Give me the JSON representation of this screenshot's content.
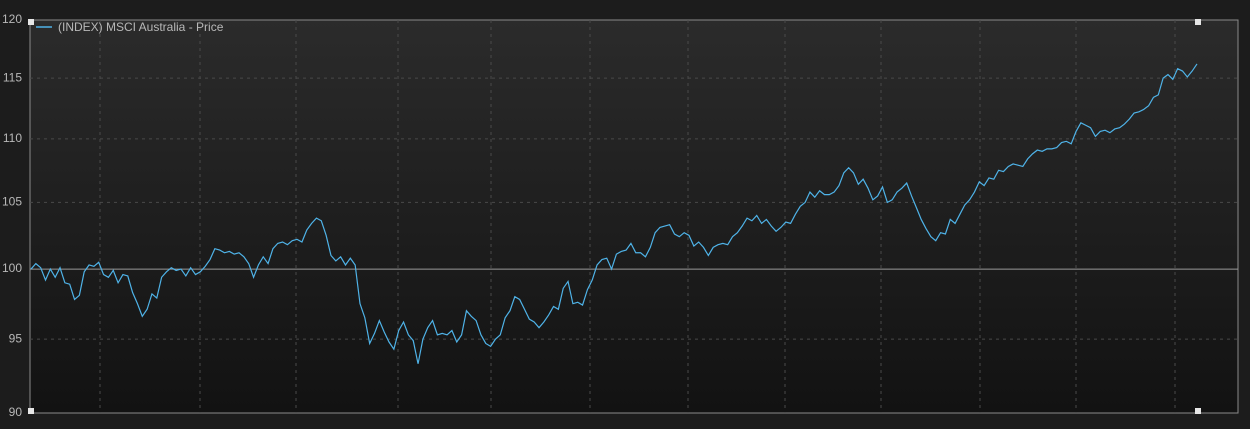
{
  "chart_data": {
    "type": "line",
    "legend_label": "(INDEX) MSCI Australia - Price",
    "series": [
      {
        "name": "(INDEX) MSCI Australia - Price",
        "color": "#4fb3e8",
        "values": [
          100,
          100.4,
          100.1,
          99.2,
          100,
          99.4,
          100.1,
          99,
          98.9,
          97.8,
          98.1,
          99.8,
          100.3,
          100.2,
          100.5,
          99.6,
          99.4,
          99.9,
          99,
          99.6,
          99.5,
          98.3,
          97.5,
          96.6,
          97.1,
          98.2,
          97.9,
          99.4,
          99.8,
          100.1,
          99.9,
          100,
          99.5,
          100.1,
          99.6,
          99.8,
          100.2,
          100.7,
          101.5,
          101.4,
          101.2,
          101.3,
          101.1,
          101.2,
          100.9,
          100.4,
          99.4,
          100.3,
          100.9,
          100.4,
          101.5,
          101.9,
          102,
          101.8,
          102.1,
          102.2,
          102,
          102.9,
          103.4,
          103.8,
          103.6,
          102.5,
          101,
          100.6,
          100.9,
          100.3,
          100.8,
          100.3,
          97.5,
          96.5,
          94.7,
          95.4,
          96.3,
          95.5,
          94.8,
          94.3,
          95.6,
          96.2,
          95.3,
          94.9,
          93.3,
          95,
          95.8,
          96.3,
          95.3,
          95.4,
          95.3,
          95.6,
          94.8,
          95.3,
          97,
          96.6,
          96.3,
          95.3,
          94.7,
          94.5,
          95,
          95.3,
          96.5,
          97,
          98,
          97.8,
          97.1,
          96.4,
          96.2,
          95.8,
          96.2,
          96.7,
          97.3,
          97.1,
          98.6,
          99.1,
          97.5,
          97.6,
          97.4,
          98.5,
          99.2,
          100.3,
          100.7,
          100.8,
          100,
          101.1,
          101.3,
          101.4,
          101.9,
          101.2,
          101.2,
          100.9,
          101.6,
          102.7,
          103.1,
          103.2,
          103.3,
          102.6,
          102.4,
          102.7,
          102.5,
          101.7,
          102,
          101.6,
          101,
          101.6,
          101.8,
          101.9,
          101.8,
          102.4,
          102.7,
          103.2,
          103.8,
          103.6,
          104,
          103.4,
          103.7,
          103.2,
          102.8,
          103.1,
          103.5,
          103.4,
          104.1,
          104.7,
          105,
          105.8,
          105.4,
          105.9,
          105.6,
          105.6,
          105.8,
          106.3,
          107.3,
          107.7,
          107.3,
          106.4,
          106.8,
          106.1,
          105.2,
          105.5,
          106.2,
          105,
          105.2,
          105.8,
          106.1,
          106.5,
          105.5,
          104.6,
          103.7,
          103,
          102.4,
          102.1,
          102.7,
          102.6,
          103.7,
          103.4,
          104.1,
          104.8,
          105.2,
          105.8,
          106.6,
          106.3,
          106.9,
          106.8,
          107.5,
          107.4,
          107.8,
          108,
          107.9,
          107.8,
          108.4,
          108.8,
          109.1,
          109,
          109.2,
          109.2,
          109.3,
          109.7,
          109.8,
          109.6,
          110.6,
          111.3,
          111.1,
          110.9,
          110.2,
          110.6,
          110.7,
          110.5,
          110.8,
          110.9,
          111.2,
          111.6,
          112.1,
          112.2,
          112.4,
          112.7,
          113.4,
          113.6,
          115,
          115.3,
          114.9,
          115.8,
          115.6,
          115.1,
          115.6,
          116.2
        ]
      }
    ],
    "ylim": [
      90,
      120
    ],
    "yticks": [
      90,
      95,
      100,
      105,
      110,
      115,
      120
    ],
    "log_scale": true,
    "grid": true,
    "baseline": 100,
    "legend": "top-left"
  }
}
